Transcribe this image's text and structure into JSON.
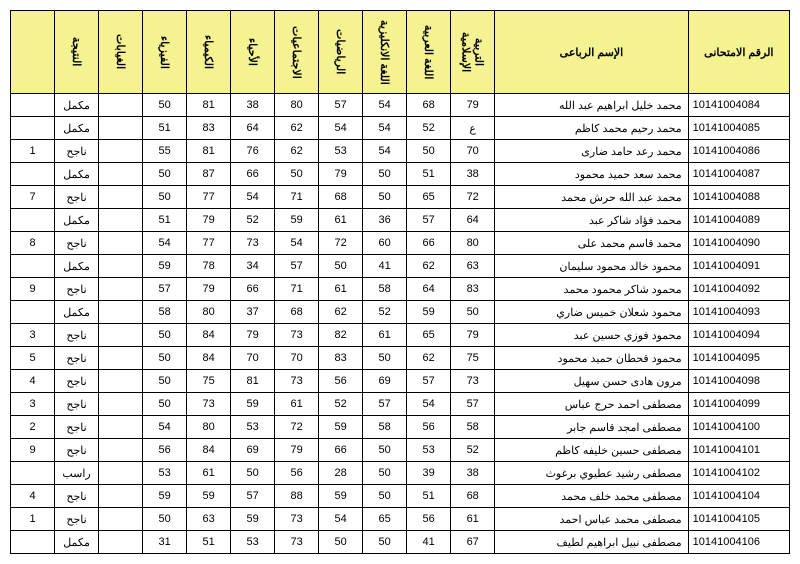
{
  "headers": {
    "exam_id": "الرقم الامتحانى",
    "name": "الإسم الرباعى",
    "islamic": "التربية الإسلامية",
    "arabic": "اللغة العربية",
    "english": "اللغة الانكليزية",
    "math": "الرياضيات",
    "social": "الاجتماعيات",
    "biology": "الأحياء",
    "chemistry": "الكيمياء",
    "physics": "الفيزياء",
    "excused": "الغيابات",
    "result": "النتيجة",
    "rank": ""
  },
  "rows": [
    {
      "id": "10141004084",
      "name": "محمد خليل ابراهيم عبد الله",
      "islamic": "79",
      "arabic": "68",
      "english": "54",
      "math": "57",
      "social": "80",
      "biology": "38",
      "chemistry": "81",
      "physics": "50",
      "excused": "",
      "result": "مكمل",
      "rank": ""
    },
    {
      "id": "10141004085",
      "name": "محمد رحيم محمد كاظم",
      "islamic": "ع",
      "arabic": "52",
      "english": "54",
      "math": "54",
      "social": "62",
      "biology": "64",
      "chemistry": "83",
      "physics": "51",
      "excused": "",
      "result": "مكمل",
      "rank": ""
    },
    {
      "id": "10141004086",
      "name": "محمد رعد حامد ضارى",
      "islamic": "70",
      "arabic": "50",
      "english": "54",
      "math": "53",
      "social": "62",
      "biology": "76",
      "chemistry": "81",
      "physics": "55",
      "excused": "",
      "result": "ناجح",
      "rank": "1"
    },
    {
      "id": "10141004087",
      "name": "محمد سعد حميد محمود",
      "islamic": "38",
      "arabic": "51",
      "english": "50",
      "math": "79",
      "social": "50",
      "biology": "66",
      "chemistry": "87",
      "physics": "50",
      "excused": "",
      "result": "مكمل",
      "rank": ""
    },
    {
      "id": "10141004088",
      "name": "محمد عبد الله حرش محمد",
      "islamic": "72",
      "arabic": "65",
      "english": "50",
      "math": "68",
      "social": "71",
      "biology": "54",
      "chemistry": "77",
      "physics": "50",
      "excused": "",
      "result": "ناجح",
      "rank": "7"
    },
    {
      "id": "10141004089",
      "name": "محمد فؤاد شاكر عبد",
      "islamic": "64",
      "arabic": "57",
      "english": "36",
      "math": "61",
      "social": "59",
      "biology": "52",
      "chemistry": "79",
      "physics": "51",
      "excused": "",
      "result": "مكمل",
      "rank": ""
    },
    {
      "id": "10141004090",
      "name": "محمد قاسم محمد على",
      "islamic": "80",
      "arabic": "66",
      "english": "60",
      "math": "72",
      "social": "54",
      "biology": "73",
      "chemistry": "77",
      "physics": "54",
      "excused": "",
      "result": "ناجح",
      "rank": "8"
    },
    {
      "id": "10141004091",
      "name": "محمود خالد محمود سليمان",
      "islamic": "63",
      "arabic": "62",
      "english": "41",
      "math": "50",
      "social": "57",
      "biology": "34",
      "chemistry": "78",
      "physics": "59",
      "excused": "",
      "result": "مكمل",
      "rank": ""
    },
    {
      "id": "10141004092",
      "name": "محمود شاكر محمود محمد",
      "islamic": "83",
      "arabic": "64",
      "english": "58",
      "math": "61",
      "social": "71",
      "biology": "66",
      "chemistry": "79",
      "physics": "57",
      "excused": "",
      "result": "ناجح",
      "rank": "9"
    },
    {
      "id": "10141004093",
      "name": "محمود شعلان خميس ضاري",
      "islamic": "50",
      "arabic": "59",
      "english": "52",
      "math": "62",
      "social": "68",
      "biology": "37",
      "chemistry": "80",
      "physics": "58",
      "excused": "",
      "result": "مكمل",
      "rank": ""
    },
    {
      "id": "10141004094",
      "name": "محمود فوزي حسين عبد",
      "islamic": "79",
      "arabic": "65",
      "english": "61",
      "math": "82",
      "social": "73",
      "biology": "79",
      "chemistry": "84",
      "physics": "50",
      "excused": "",
      "result": "ناجح",
      "rank": "3"
    },
    {
      "id": "10141004095",
      "name": "محمود قحطان حميد محمود",
      "islamic": "75",
      "arabic": "62",
      "english": "50",
      "math": "83",
      "social": "70",
      "biology": "70",
      "chemistry": "84",
      "physics": "50",
      "excused": "",
      "result": "ناجح",
      "rank": "5"
    },
    {
      "id": "10141004098",
      "name": "مرون هادى حسن سهيل",
      "islamic": "73",
      "arabic": "57",
      "english": "69",
      "math": "56",
      "social": "73",
      "biology": "81",
      "chemistry": "75",
      "physics": "50",
      "excused": "",
      "result": "ناجح",
      "rank": "4"
    },
    {
      "id": "10141004099",
      "name": "مصطفى احمد حرج عباس",
      "islamic": "57",
      "arabic": "54",
      "english": "57",
      "math": "52",
      "social": "61",
      "biology": "59",
      "chemistry": "73",
      "physics": "50",
      "excused": "",
      "result": "ناجح",
      "rank": "3"
    },
    {
      "id": "10141004100",
      "name": "مصطفى امجد قاسم جابر",
      "islamic": "58",
      "arabic": "56",
      "english": "58",
      "math": "59",
      "social": "72",
      "biology": "53",
      "chemistry": "80",
      "physics": "54",
      "excused": "",
      "result": "ناجح",
      "rank": "2"
    },
    {
      "id": "10141004101",
      "name": "مصطفى حسين خليفه كاظم",
      "islamic": "52",
      "arabic": "53",
      "english": "50",
      "math": "66",
      "social": "79",
      "biology": "69",
      "chemistry": "84",
      "physics": "56",
      "excused": "",
      "result": "ناجح",
      "rank": "9"
    },
    {
      "id": "10141004102",
      "name": "مصطفى رشيد عطيوي برغوث",
      "islamic": "38",
      "arabic": "39",
      "english": "50",
      "math": "28",
      "social": "56",
      "biology": "50",
      "chemistry": "61",
      "physics": "53",
      "excused": "",
      "result": "راسب",
      "rank": ""
    },
    {
      "id": "10141004104",
      "name": "مصطفى محمد خلف محمد",
      "islamic": "68",
      "arabic": "51",
      "english": "50",
      "math": "59",
      "social": "88",
      "biology": "57",
      "chemistry": "59",
      "physics": "59",
      "excused": "",
      "result": "ناجح",
      "rank": "4"
    },
    {
      "id": "10141004105",
      "name": "مصطفى محمد عباس احمد",
      "islamic": "61",
      "arabic": "56",
      "english": "65",
      "math": "54",
      "social": "73",
      "biology": "59",
      "chemistry": "63",
      "physics": "50",
      "excused": "",
      "result": "ناجح",
      "rank": "1"
    },
    {
      "id": "10141004106",
      "name": "مصطفى نبيل ابراهيم لطيف",
      "islamic": "67",
      "arabic": "41",
      "english": "50",
      "math": "50",
      "social": "73",
      "biology": "53",
      "chemistry": "51",
      "physics": "31",
      "excused": "",
      "result": "مكمل",
      "rank": ""
    }
  ],
  "style": {
    "header_bg": "#f5f391",
    "border_color": "#000000",
    "font_size": 11
  }
}
